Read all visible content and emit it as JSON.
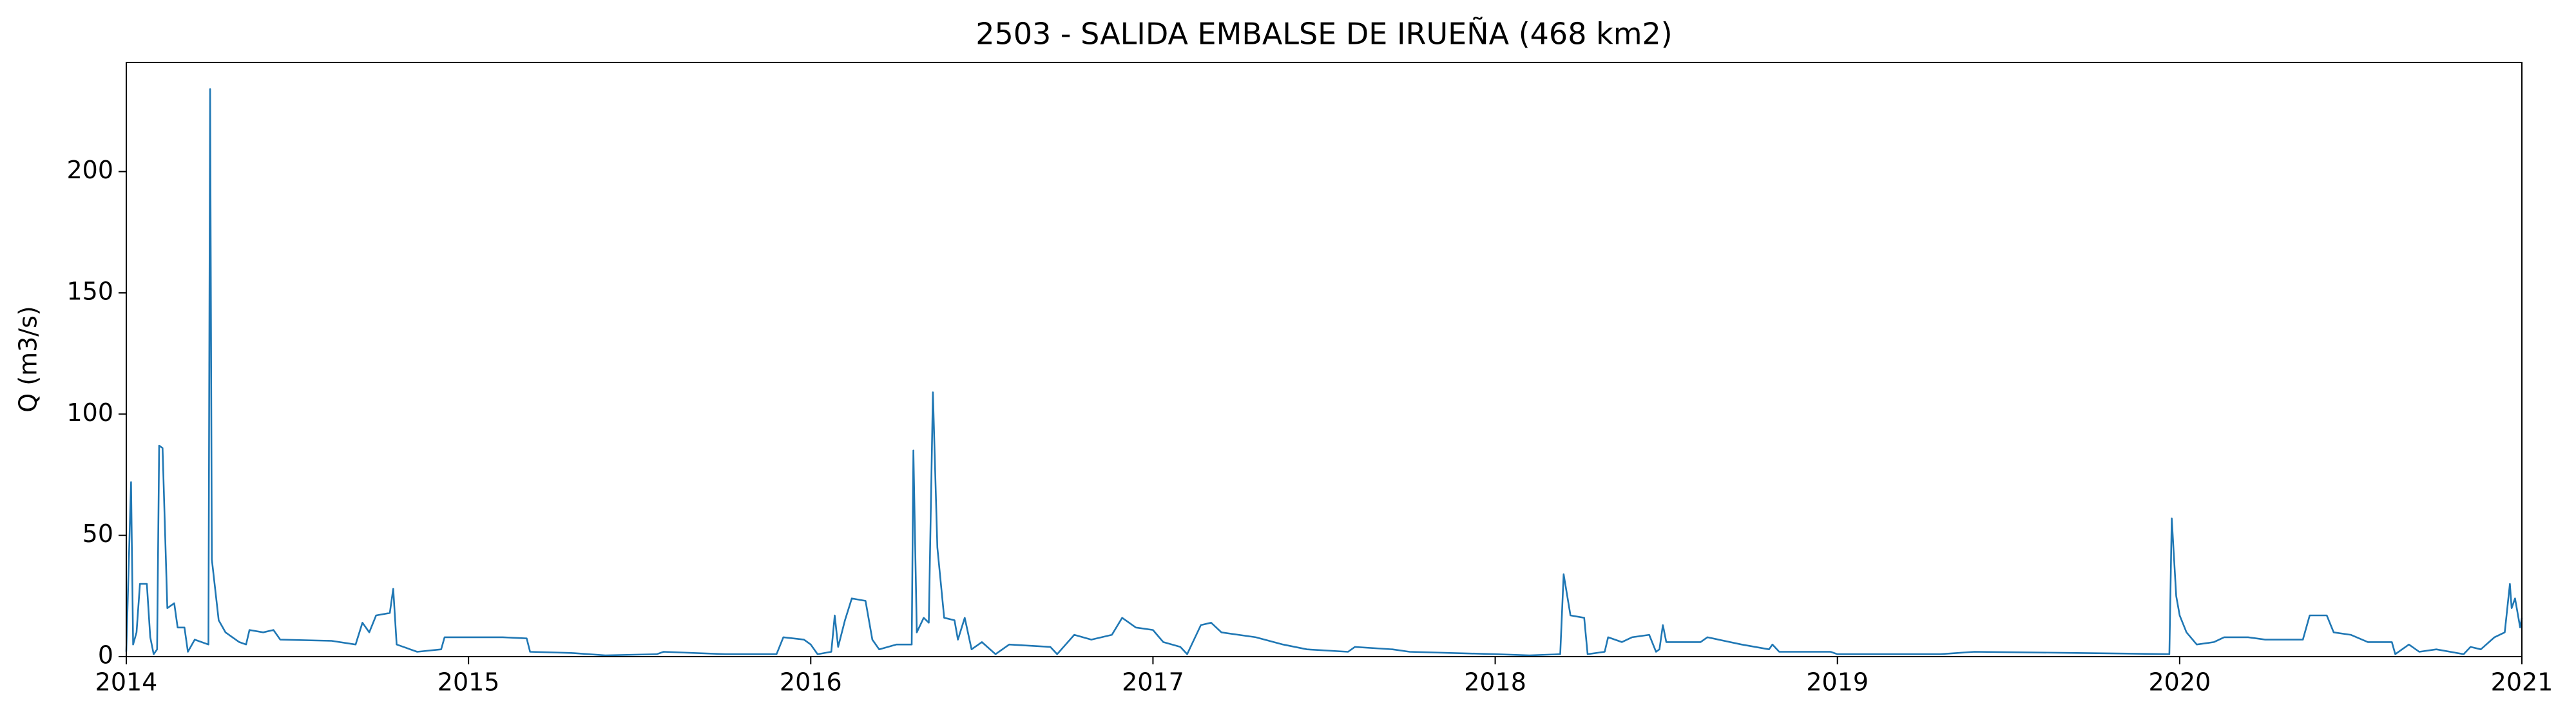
{
  "chart_data": {
    "type": "line",
    "title": "2503 - SALIDA EMBALSE DE IRUEÑA (468 km2)",
    "y_label": "Q (m3/s)",
    "xlim": [
      2014,
      2021
    ],
    "xticks": [
      2014,
      2015,
      2016,
      2017,
      2018,
      2019,
      2020,
      2021
    ],
    "ylim": [
      0,
      245
    ],
    "yticks": [
      0,
      50,
      100,
      150,
      200
    ],
    "grid": false,
    "series": [
      {
        "name": "Q",
        "color": "#1f77b4",
        "x": [
          2014.0,
          2014.014,
          2014.02,
          2014.03,
          2014.04,
          2014.06,
          2014.07,
          2014.08,
          2014.09,
          2014.096,
          2014.106,
          2014.12,
          2014.14,
          2014.15,
          2014.17,
          2014.18,
          2014.2,
          2014.24,
          2014.245,
          2014.25,
          2014.27,
          2014.29,
          2014.31,
          2014.33,
          2014.35,
          2014.36,
          2014.4,
          2014.43,
          2014.45,
          2014.6,
          2014.67,
          2014.69,
          2014.71,
          2014.73,
          2014.77,
          2014.78,
          2014.79,
          2014.85,
          2014.92,
          2014.93,
          2015.1,
          2015.17,
          2015.18,
          2015.3,
          2015.4,
          2015.55,
          2015.57,
          2015.75,
          2015.9,
          2015.92,
          2015.98,
          2016.0,
          2016.02,
          2016.06,
          2016.07,
          2016.08,
          2016.1,
          2016.12,
          2016.16,
          2016.18,
          2016.2,
          2016.25,
          2016.295,
          2016.3,
          2016.31,
          2016.33,
          2016.345,
          2016.357,
          2016.37,
          2016.39,
          2016.42,
          2016.43,
          2016.45,
          2016.47,
          2016.5,
          2016.54,
          2016.58,
          2016.7,
          2016.72,
          2016.77,
          2016.82,
          2016.88,
          2016.91,
          2016.95,
          2017.0,
          2017.03,
          2017.08,
          2017.1,
          2017.14,
          2017.17,
          2017.2,
          2017.3,
          2017.38,
          2017.45,
          2017.57,
          2017.59,
          2017.7,
          2017.75,
          2018.0,
          2018.1,
          2018.19,
          2018.2,
          2018.22,
          2018.26,
          2018.27,
          2018.32,
          2018.33,
          2018.37,
          2018.4,
          2018.45,
          2018.47,
          2018.48,
          2018.49,
          2018.5,
          2018.6,
          2018.62,
          2018.72,
          2018.8,
          2018.81,
          2018.83,
          2018.98,
          2019.0,
          2019.3,
          2019.4,
          2019.7,
          2019.97,
          2019.977,
          2019.99,
          2020.0,
          2020.02,
          2020.05,
          2020.1,
          2020.13,
          2020.2,
          2020.25,
          2020.36,
          2020.38,
          2020.43,
          2020.45,
          2020.5,
          2020.55,
          2020.62,
          2020.63,
          2020.67,
          2020.7,
          2020.75,
          2020.83,
          2020.85,
          2020.88,
          2020.92,
          2020.95,
          2020.965,
          2020.97,
          2020.98,
          2020.995,
          2021.0
        ],
        "values": [
          2,
          72,
          5,
          10,
          30,
          30,
          8,
          1,
          3,
          87,
          86,
          20,
          22,
          12,
          12,
          2,
          7,
          5,
          234,
          40,
          15,
          10,
          8,
          6,
          5,
          11,
          10,
          11,
          7,
          6.5,
          5,
          14,
          10,
          17,
          18,
          28,
          5,
          2,
          3,
          8,
          8,
          7.5,
          2,
          1.5,
          0.5,
          1,
          2,
          1,
          1,
          8,
          7,
          5,
          1,
          2,
          17,
          4,
          15,
          24,
          23,
          7,
          3,
          5,
          5,
          85,
          10,
          16,
          14,
          109,
          45,
          16,
          15,
          7,
          16,
          3,
          6,
          1,
          5,
          4,
          1,
          9,
          7,
          9,
          16,
          12,
          11,
          6,
          4,
          1,
          13,
          14,
          10,
          8,
          5,
          3,
          2,
          4,
          3,
          2,
          1,
          0.5,
          1,
          34,
          17,
          16,
          1,
          2,
          8,
          6,
          8,
          9,
          2,
          3,
          13,
          6,
          6,
          8,
          5,
          3,
          5,
          2,
          2,
          1,
          1,
          2,
          1.5,
          1,
          57,
          25,
          17,
          10,
          5,
          6,
          8,
          8,
          7,
          7,
          17,
          17,
          10,
          9,
          6,
          6,
          1,
          5,
          2,
          3,
          1,
          4,
          3,
          8,
          10,
          30,
          20,
          24,
          12,
          16
        ]
      }
    ]
  }
}
